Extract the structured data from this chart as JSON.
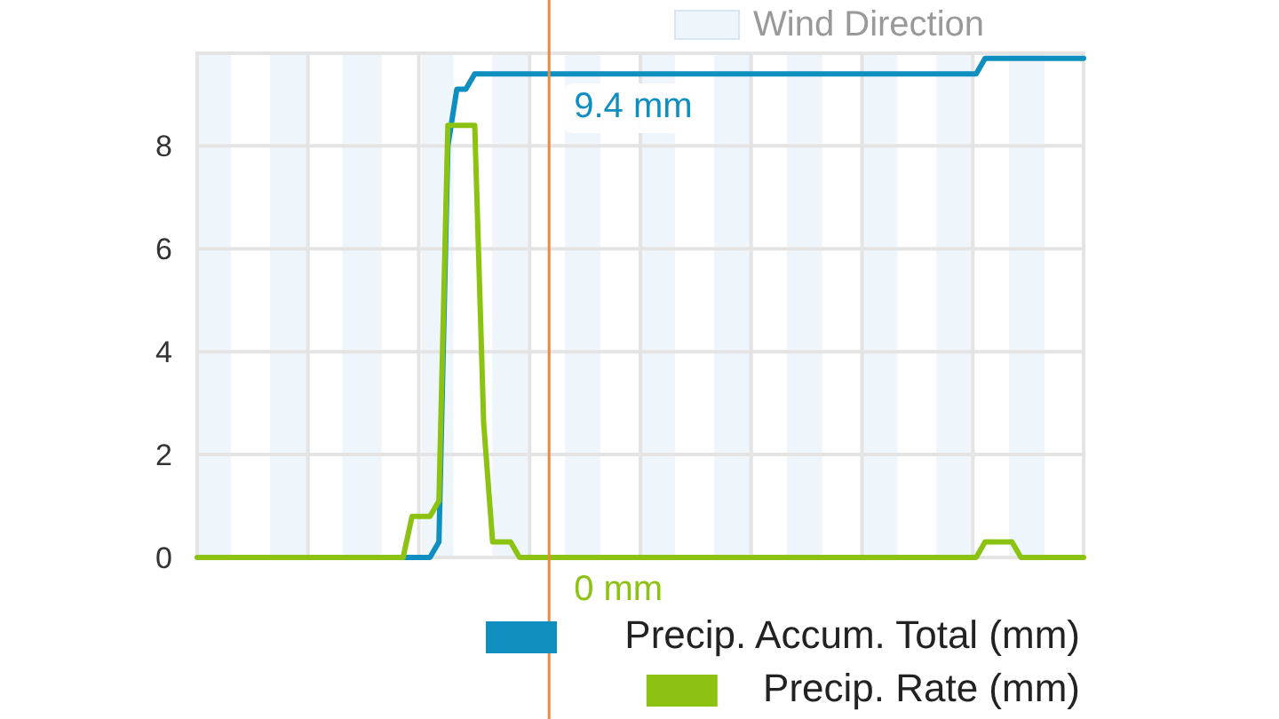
{
  "chart_data": {
    "type": "line",
    "categories": [
      null,
      null,
      null,
      null,
      null,
      null,
      null,
      null,
      null,
      null,
      null,
      null,
      null,
      null,
      null,
      null,
      null,
      null,
      null,
      null,
      null,
      null,
      null,
      null,
      null,
      null,
      null,
      null,
      null,
      null,
      null,
      null,
      null,
      null,
      null,
      null,
      null,
      null,
      null,
      null,
      null,
      null,
      null,
      null,
      null,
      null,
      null,
      null,
      null,
      null,
      null,
      null,
      null,
      null,
      null,
      null,
      null,
      null,
      null,
      null,
      null,
      null,
      null,
      null,
      null,
      null,
      null,
      null,
      null,
      null,
      null,
      null,
      null,
      null,
      null,
      null,
      null,
      null,
      null,
      null,
      null,
      null,
      null,
      null,
      null,
      null,
      null,
      null,
      null,
      null,
      null,
      null,
      null,
      null,
      null,
      null,
      null,
      null,
      null,
      null
    ],
    "ylim": [
      0,
      9.8
    ],
    "yticks": [
      0,
      2,
      4,
      6,
      8
    ],
    "grid": true,
    "legend": "bottom right",
    "series": [
      {
        "name": "Precip. Accum. Total (mm)",
        "color": "#0e8fc0",
        "values": [
          null,
          null,
          null,
          null,
          null,
          null,
          null,
          null,
          null,
          null,
          null,
          null,
          null,
          null,
          null,
          null,
          null,
          null,
          null,
          null,
          null,
          null,
          0,
          0,
          0,
          0,
          0,
          0.3,
          8.0,
          9.1,
          9.1,
          9.4,
          9.4,
          9.4,
          9.4,
          9.4,
          9.4,
          9.4,
          9.4,
          9.4,
          9.4,
          9.4,
          9.4,
          9.4,
          9.4,
          9.4,
          9.4,
          9.4,
          9.4,
          9.4,
          9.4,
          9.4,
          9.4,
          9.4,
          9.4,
          9.4,
          9.4,
          9.4,
          9.4,
          9.4,
          9.4,
          9.4,
          9.4,
          9.4,
          9.4,
          9.4,
          9.4,
          9.4,
          9.4,
          9.4,
          9.4,
          9.4,
          9.4,
          9.4,
          9.4,
          9.4,
          9.4,
          9.4,
          9.4,
          9.4,
          9.4,
          9.4,
          9.4,
          9.4,
          9.4,
          9.4,
          9.4,
          9.4,
          9.7,
          9.7,
          9.7,
          9.7,
          9.7,
          9.7,
          9.7,
          9.7,
          9.7,
          9.7,
          9.7,
          9.7
        ]
      },
      {
        "name": "Precip. Rate (mm)",
        "color": "#8cc312",
        "values": [
          0,
          0,
          0,
          0,
          0,
          0,
          0,
          0,
          0,
          0,
          0,
          0,
          0,
          0,
          0,
          0,
          0,
          0,
          0,
          0,
          0,
          0,
          0,
          0,
          0.8,
          0.8,
          0.8,
          1.1,
          8.4,
          8.4,
          8.4,
          8.4,
          2.6,
          0.3,
          0.3,
          0.3,
          0,
          0,
          0,
          0,
          0,
          0,
          0,
          0,
          0,
          0,
          0,
          0,
          0,
          0,
          0,
          0,
          0,
          0,
          0,
          0,
          0,
          0,
          0,
          0,
          0,
          0,
          0,
          0,
          0,
          0,
          0,
          0,
          0,
          0,
          0,
          0,
          0,
          0,
          0,
          0,
          0,
          0,
          0,
          0,
          0,
          0,
          0,
          0,
          0,
          0,
          0,
          0,
          0.3,
          0.3,
          0.3,
          0.3,
          0,
          0,
          0,
          0,
          0,
          0,
          0,
          0
        ]
      }
    ],
    "annotations": [
      "9.4 mm",
      "0 mm",
      "Wind Direction"
    ]
  }
}
